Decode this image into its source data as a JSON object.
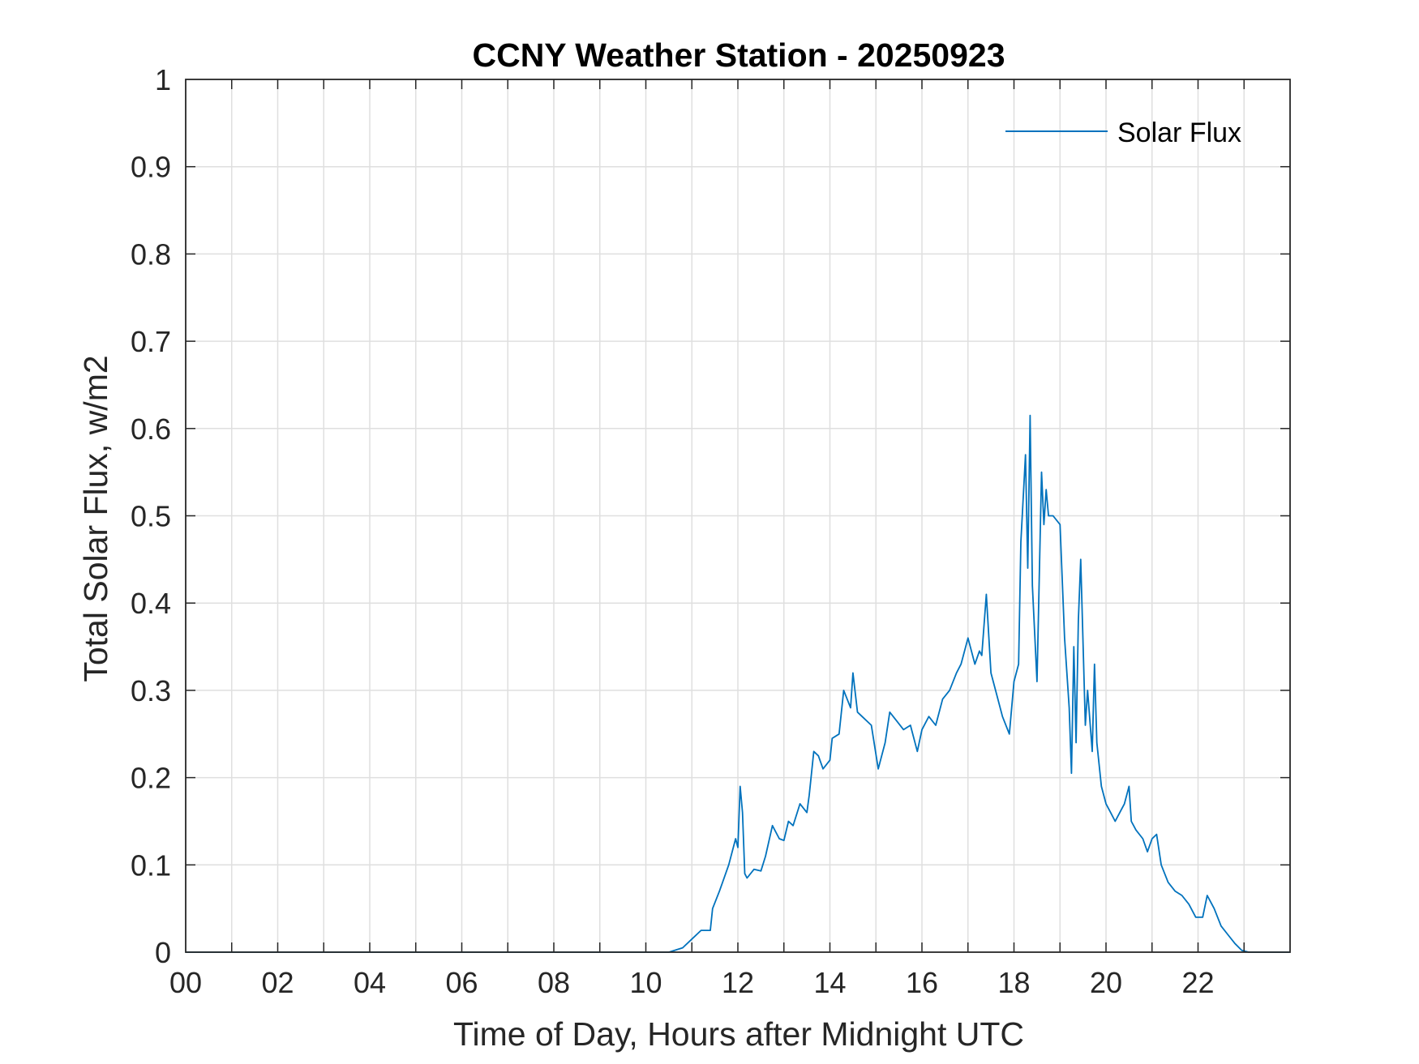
{
  "chart_data": {
    "type": "line",
    "title": "CCNY Weather Station - 20250923",
    "xlabel": "Time of Day, Hours after Midnight UTC",
    "ylabel": "Total Solar Flux, w/m2",
    "xlim": [
      0,
      24
    ],
    "ylim": [
      0,
      1
    ],
    "x_ticks": [
      0,
      2,
      4,
      6,
      8,
      10,
      12,
      14,
      16,
      18,
      20,
      22
    ],
    "x_tick_labels": [
      "00",
      "02",
      "04",
      "06",
      "08",
      "10",
      "12",
      "14",
      "16",
      "18",
      "20",
      "22"
    ],
    "y_ticks": [
      0,
      0.1,
      0.2,
      0.3,
      0.4,
      0.5,
      0.6,
      0.7,
      0.8,
      0.9,
      1
    ],
    "y_tick_labels": [
      "0",
      "0.1",
      "0.2",
      "0.3",
      "0.4",
      "0.5",
      "0.6",
      "0.7",
      "0.8",
      "0.9",
      "1"
    ],
    "grid": true,
    "legend_position": "top-right",
    "series": [
      {
        "name": "Solar Flux",
        "color": "#0072BD",
        "x": [
          0,
          10.5,
          10.8,
          11.0,
          11.2,
          11.4,
          11.45,
          11.6,
          11.8,
          11.95,
          12.0,
          12.05,
          12.1,
          12.15,
          12.2,
          12.35,
          12.5,
          12.6,
          12.75,
          12.9,
          13.0,
          13.1,
          13.2,
          13.35,
          13.5,
          13.55,
          13.65,
          13.75,
          13.85,
          14.0,
          14.05,
          14.2,
          14.3,
          14.45,
          14.5,
          14.6,
          14.7,
          14.9,
          15.05,
          15.2,
          15.3,
          15.45,
          15.6,
          15.75,
          15.9,
          16.0,
          16.15,
          16.3,
          16.45,
          16.6,
          16.75,
          16.85,
          17.0,
          17.15,
          17.25,
          17.3,
          17.4,
          17.5,
          17.6,
          17.75,
          17.9,
          18.0,
          18.1,
          18.15,
          18.25,
          18.3,
          18.35,
          18.4,
          18.5,
          18.6,
          18.65,
          18.7,
          18.75,
          18.85,
          19.0,
          19.1,
          19.2,
          19.25,
          19.3,
          19.35,
          19.4,
          19.45,
          19.55,
          19.6,
          19.7,
          19.75,
          19.8,
          19.9,
          20.0,
          20.1,
          20.2,
          20.3,
          20.4,
          20.5,
          20.55,
          20.65,
          20.8,
          20.9,
          21.0,
          21.1,
          21.2,
          21.35,
          21.5,
          21.65,
          21.8,
          21.95,
          22.1,
          22.2,
          22.25,
          22.35,
          22.5,
          22.65,
          22.8,
          22.95,
          23.1,
          24
        ],
        "values": [
          0,
          0,
          0.005,
          0.015,
          0.025,
          0.025,
          0.05,
          0.07,
          0.1,
          0.13,
          0.12,
          0.19,
          0.16,
          0.09,
          0.085,
          0.095,
          0.093,
          0.11,
          0.145,
          0.13,
          0.128,
          0.15,
          0.145,
          0.17,
          0.16,
          0.18,
          0.23,
          0.225,
          0.21,
          0.22,
          0.245,
          0.25,
          0.3,
          0.28,
          0.32,
          0.275,
          0.27,
          0.26,
          0.21,
          0.24,
          0.275,
          0.265,
          0.255,
          0.26,
          0.23,
          0.255,
          0.27,
          0.26,
          0.29,
          0.3,
          0.32,
          0.33,
          0.36,
          0.33,
          0.345,
          0.34,
          0.41,
          0.32,
          0.3,
          0.27,
          0.25,
          0.31,
          0.33,
          0.47,
          0.57,
          0.44,
          0.615,
          0.42,
          0.31,
          0.55,
          0.49,
          0.53,
          0.5,
          0.5,
          0.49,
          0.36,
          0.28,
          0.205,
          0.35,
          0.24,
          0.38,
          0.45,
          0.26,
          0.3,
          0.23,
          0.33,
          0.24,
          0.19,
          0.17,
          0.16,
          0.15,
          0.16,
          0.17,
          0.19,
          0.15,
          0.14,
          0.13,
          0.115,
          0.13,
          0.135,
          0.1,
          0.08,
          0.07,
          0.065,
          0.055,
          0.04,
          0.04,
          0.065,
          0.06,
          0.05,
          0.03,
          0.02,
          0.01,
          0.002,
          0,
          0
        ]
      }
    ]
  }
}
